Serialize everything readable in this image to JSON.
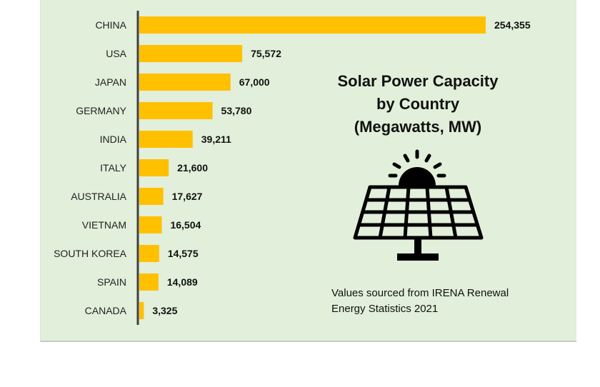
{
  "chart_data": {
    "type": "bar",
    "orientation": "horizontal",
    "title_lines": [
      "Solar Power Capacity",
      "by Country",
      "(Megawatts, MW)"
    ],
    "categories": [
      "CHINA",
      "USA",
      "JAPAN",
      "GERMANY",
      "INDIA",
      "ITALY",
      "AUSTRALIA",
      "VIETNAM",
      "SOUTH KOREA",
      "SPAIN",
      "CANADA"
    ],
    "values": [
      254355,
      75572,
      67000,
      53780,
      39211,
      21600,
      17627,
      16504,
      14575,
      14089,
      3325
    ],
    "data_labels": [
      "254,355",
      "75,572",
      "67,000",
      "53,780",
      "39,211",
      "21,600",
      "17,627",
      "16,504",
      "14,575",
      "14,089",
      "3,325"
    ],
    "xlim": [
      0,
      254355
    ],
    "grid": false,
    "legend": "none",
    "bar_color": "#ffc000",
    "background_color": "#e2efda",
    "annotation_lines": [
      "Values sourced from IRENA Renewal",
      "Energy Statistics 2021"
    ],
    "icon": "solar-panel-with-sun-icon"
  }
}
